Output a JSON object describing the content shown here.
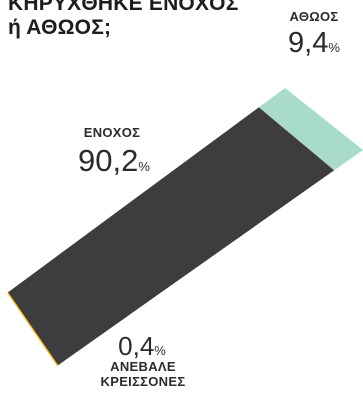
{
  "title": "ΚΗΡΥΧΘΗΚΕ ΕΝΟΧΟΣ ή ΑΘΩΟΣ;",
  "chart_data": {
    "type": "bar",
    "title": "ΚΗΡΥΧΘΗΚΕ ΕΝΟΧΟΣ ή ΑΘΩΟΣ;",
    "orientation": "stacked-single-bar",
    "unit": "%",
    "categories": [
      "ΑΝΕΒΑΛΕ ΚΡΕΙΣΣΟΝΕΣ",
      "ΕΝΟΧΟΣ",
      "ΑΘΩΟΣ"
    ],
    "values": [
      0.4,
      90.2,
      9.4
    ],
    "value_labels": [
      "0,4",
      "90,2",
      "9,4"
    ],
    "colors": [
      "#f5c320",
      "#3d3d3f",
      "#a8dcc8"
    ]
  },
  "labels": {
    "athoos": {
      "name": "ΑΘΩΟΣ",
      "value": "9,4",
      "unit": "%"
    },
    "enochos": {
      "name": "ΕΝΟΧΟΣ",
      "value": "90,2",
      "unit": "%"
    },
    "anevale": {
      "name_line1": "ΑΝΕΒΑΛΕ",
      "name_line2": "ΚΡΕΙΣΣΟΝΕΣ",
      "value": "0,4",
      "unit": "%"
    }
  }
}
